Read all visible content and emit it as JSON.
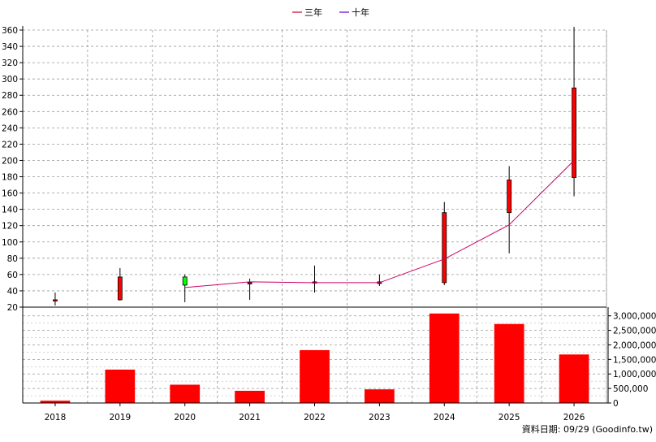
{
  "legend": {
    "items": [
      {
        "label": "三年",
        "color": "#cc0033"
      },
      {
        "label": "十年",
        "color": "#6600cc"
      }
    ]
  },
  "footer": {
    "source_text": "資料日期: 09/29  (Goodinfo.tw)"
  },
  "colors": {
    "up_candle": "#ff0000",
    "down_candle": "#00ff00",
    "volume_bar": "#ff0000",
    "ma_line": "#cc0066",
    "grid": "#999999",
    "axis": "#000000"
  },
  "chart_data": [
    {
      "type": "candlestick",
      "title": "",
      "categories": [
        "2018",
        "2019",
        "2020",
        "2021",
        "2022",
        "2023",
        "2024",
        "2025",
        "2026"
      ],
      "ylim": [
        20,
        360
      ],
      "yticks": [
        20,
        40,
        60,
        80,
        100,
        120,
        140,
        160,
        180,
        200,
        220,
        240,
        260,
        280,
        300,
        320,
        340,
        360
      ],
      "grid": true,
      "candles": [
        {
          "x": "2018",
          "open": 29,
          "close": 29,
          "high": 38,
          "low": 22
        },
        {
          "x": "2019",
          "open": 29,
          "close": 57,
          "high": 68,
          "low": 28
        },
        {
          "x": "2020",
          "open": 57,
          "close": 47,
          "high": 60,
          "low": 26
        },
        {
          "x": "2021",
          "open": 49,
          "close": 50,
          "high": 55,
          "low": 29
        },
        {
          "x": "2022",
          "open": 50,
          "close": 51,
          "high": 71,
          "low": 38
        },
        {
          "x": "2023",
          "open": 49,
          "close": 51,
          "high": 60,
          "low": 46
        },
        {
          "x": "2024",
          "open": 50,
          "close": 136,
          "high": 149,
          "low": 47
        },
        {
          "x": "2025",
          "open": 136,
          "close": 176,
          "high": 193,
          "low": 86
        },
        {
          "x": "2026",
          "open": 179,
          "close": 289,
          "high": 364,
          "low": 156
        }
      ],
      "series": [
        {
          "name": "三年",
          "points": [
            {
              "x": "2020",
              "y": 44
            },
            {
              "x": "2021",
              "y": 51
            },
            {
              "x": "2022",
              "y": 50
            },
            {
              "x": "2023",
              "y": 50
            },
            {
              "x": "2024",
              "y": 79
            },
            {
              "x": "2025",
              "y": 121
            },
            {
              "x": "2026",
              "y": 200
            }
          ]
        }
      ]
    },
    {
      "type": "bar",
      "title": "",
      "categories": [
        "2018",
        "2019",
        "2020",
        "2021",
        "2022",
        "2023",
        "2024",
        "2025",
        "2026"
      ],
      "values": [
        80000,
        1150000,
        630000,
        420000,
        1820000,
        470000,
        3080000,
        2720000,
        1670000
      ],
      "ylim": [
        0,
        3300000
      ],
      "yticks": [
        0,
        500000,
        1000000,
        1500000,
        2000000,
        2500000,
        3000000
      ],
      "ytick_labels": [
        "0",
        "500,000",
        "1,000,000",
        "1,500,000",
        "2,000,000",
        "2,500,000",
        "3,000,000"
      ],
      "grid": true
    }
  ]
}
